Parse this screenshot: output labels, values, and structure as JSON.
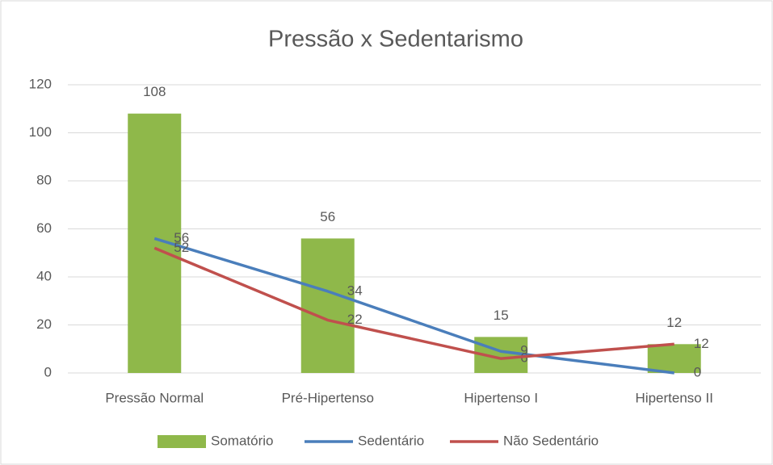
{
  "chart_data": {
    "type": "bar",
    "title": "Pressão x Sedentarismo",
    "categories": [
      "Pressão Normal",
      "Pré-Hipertenso",
      "Hipertenso I",
      "Hipertenso II"
    ],
    "series": [
      {
        "name": "Somatório",
        "type": "bar",
        "color": "#8fb84a",
        "values": [
          108,
          56,
          15,
          12
        ]
      },
      {
        "name": "Sedentário",
        "type": "line",
        "color": "#4a7ebb",
        "values": [
          56,
          34,
          9,
          0
        ]
      },
      {
        "name": "Não Sedentário",
        "type": "line",
        "color": "#c0504d",
        "values": [
          52,
          22,
          6,
          12
        ]
      }
    ],
    "ylim": [
      0,
      120
    ],
    "yticks": [
      0,
      20,
      40,
      60,
      80,
      100,
      120
    ],
    "grid": true,
    "legend": "bottom"
  }
}
